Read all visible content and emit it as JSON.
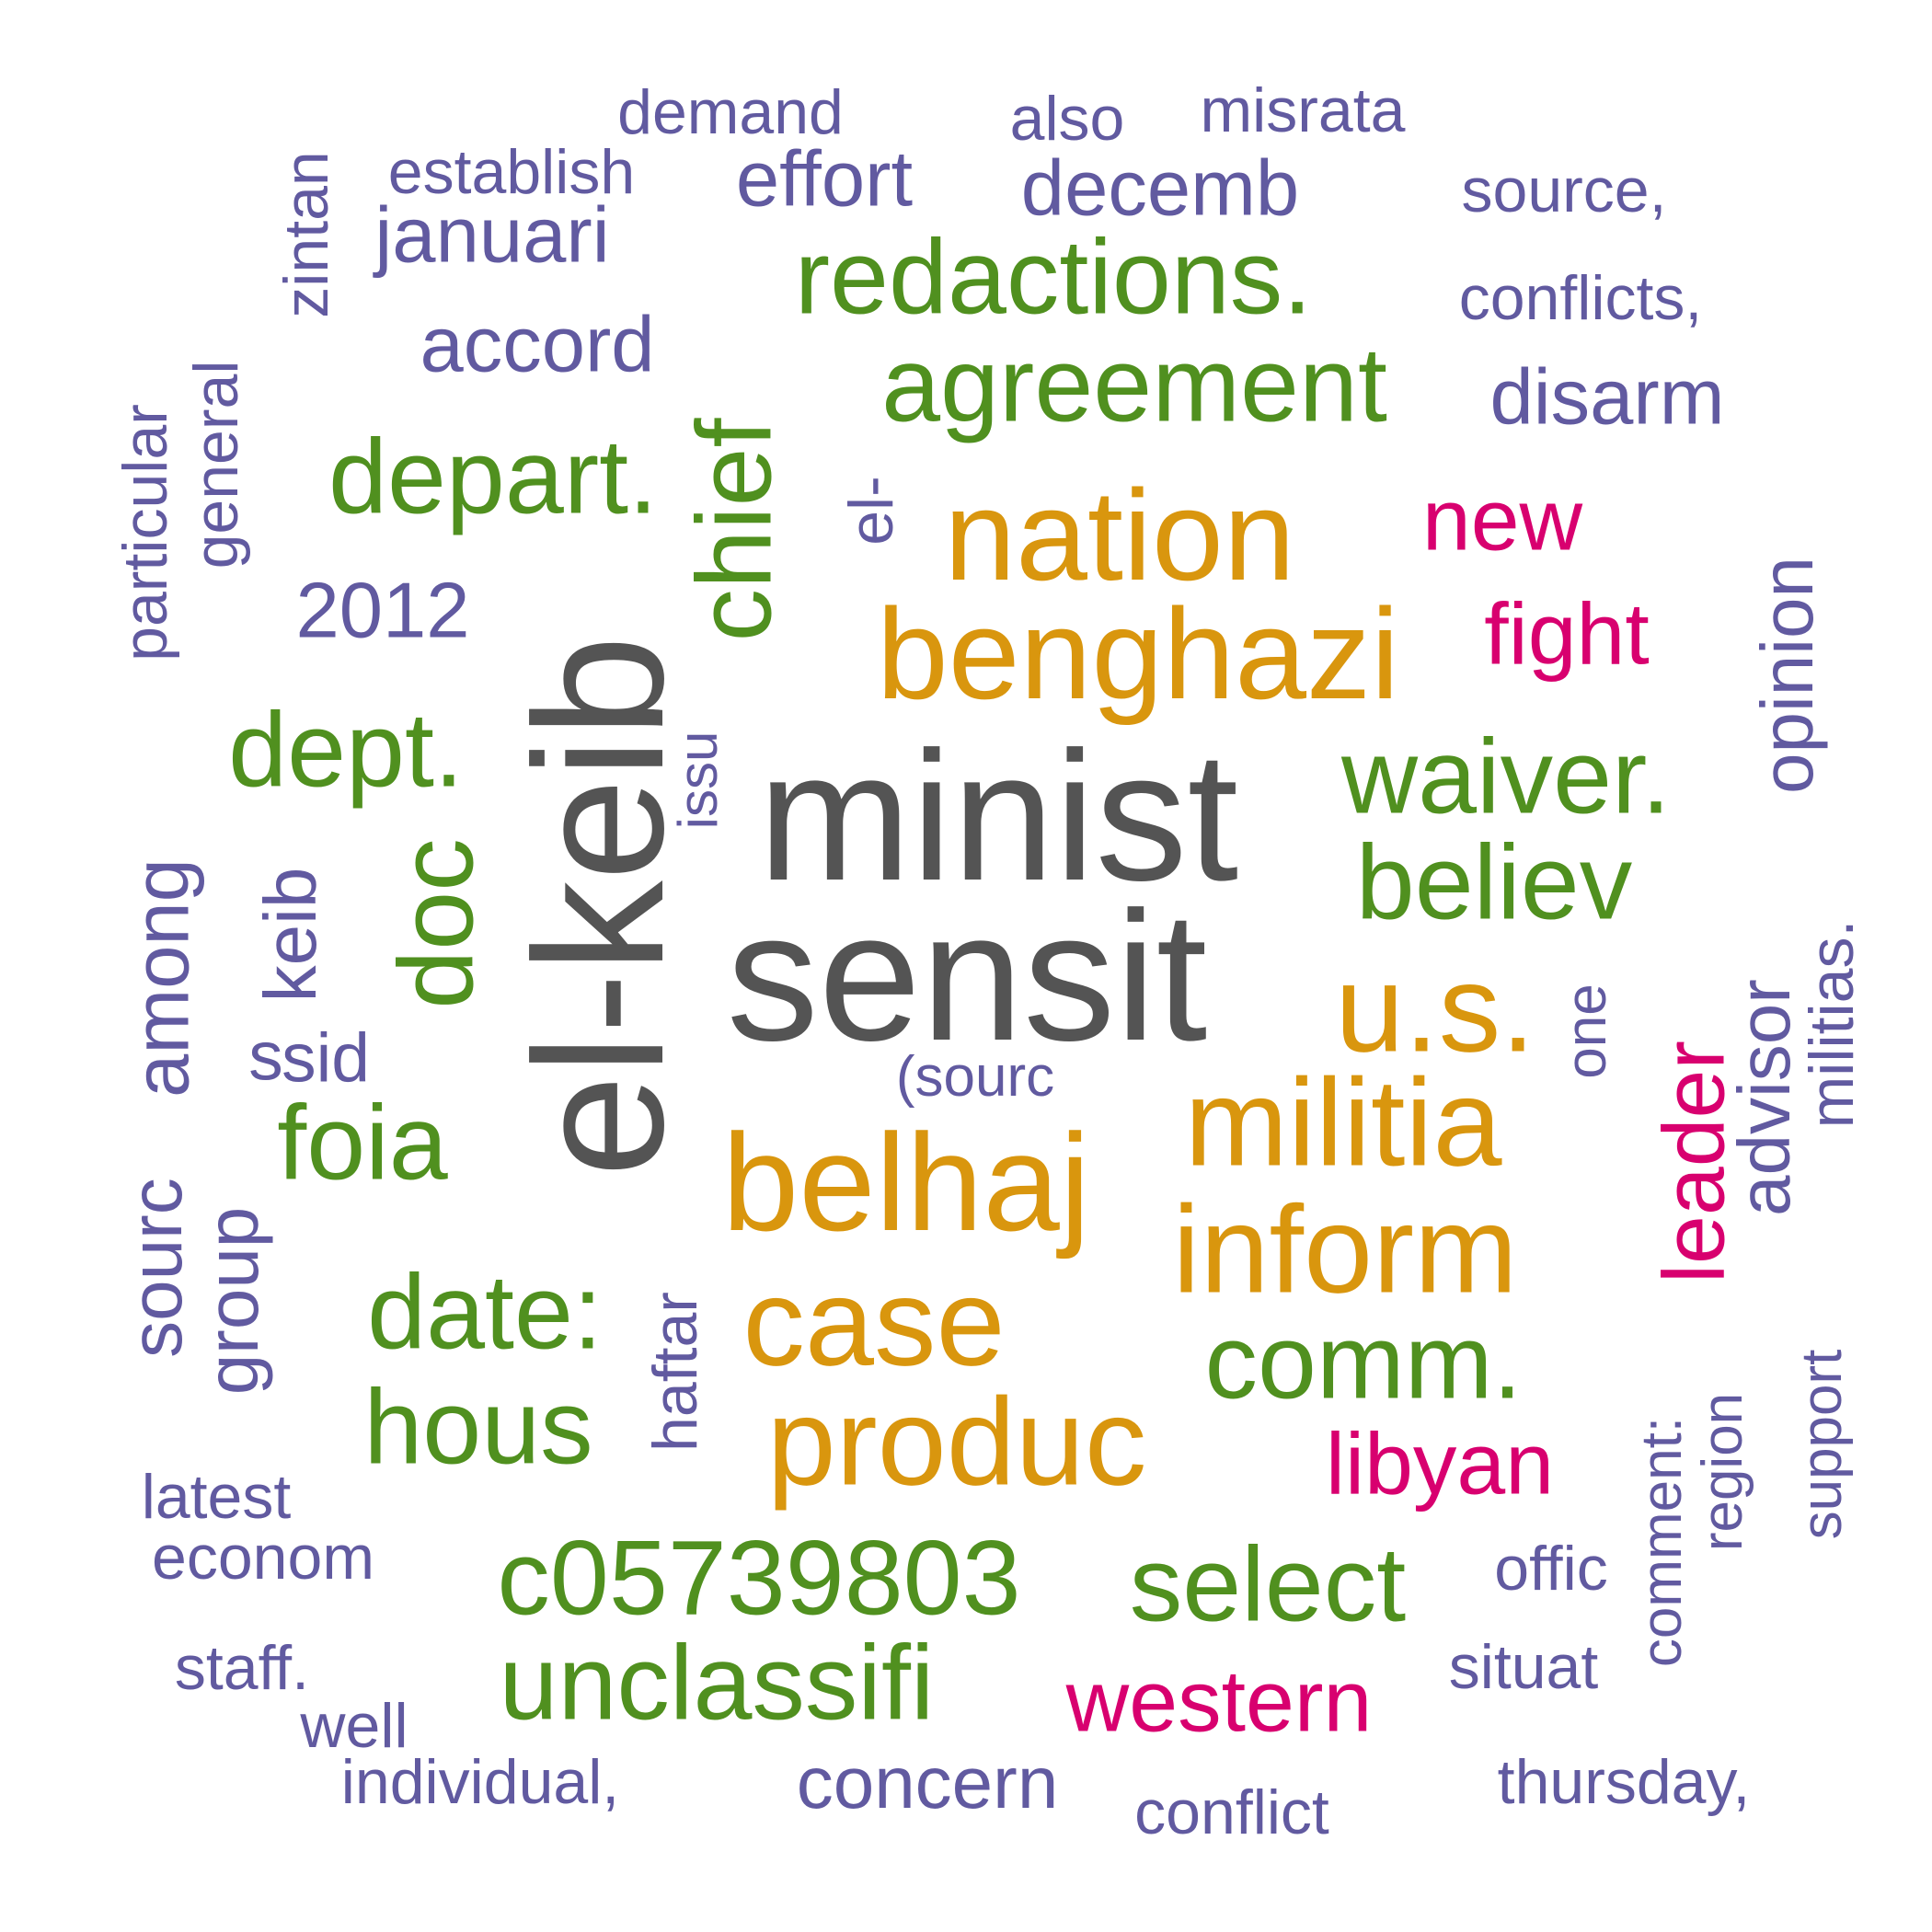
{
  "colors": {
    "dark": "#545454",
    "orange": "#d9960e",
    "green": "#50901f",
    "pink": "#d8006f",
    "purple": "#615aa0"
  },
  "words": [
    {
      "text": "minist",
      "color": "dark"
    },
    {
      "text": "sensit",
      "color": "dark"
    },
    {
      "text": "el-keib",
      "color": "dark"
    },
    {
      "text": "belhaj",
      "color": "orange"
    },
    {
      "text": "benghazi",
      "color": "orange"
    },
    {
      "text": "nation",
      "color": "orange"
    },
    {
      "text": "militia",
      "color": "orange"
    },
    {
      "text": "inform",
      "color": "orange"
    },
    {
      "text": "case",
      "color": "orange"
    },
    {
      "text": "produc",
      "color": "orange"
    },
    {
      "text": "u.s.",
      "color": "orange"
    },
    {
      "text": "redactions.",
      "color": "green"
    },
    {
      "text": "agreement",
      "color": "green"
    },
    {
      "text": "depart.",
      "color": "green"
    },
    {
      "text": "chief",
      "color": "green"
    },
    {
      "text": "dept.",
      "color": "green"
    },
    {
      "text": "waiver.",
      "color": "green"
    },
    {
      "text": "believ",
      "color": "green"
    },
    {
      "text": "doc",
      "color": "green"
    },
    {
      "text": "foia",
      "color": "green"
    },
    {
      "text": "date:",
      "color": "green"
    },
    {
      "text": "comm.",
      "color": "green"
    },
    {
      "text": "hous",
      "color": "green"
    },
    {
      "text": "c05739803",
      "color": "green"
    },
    {
      "text": "select",
      "color": "green"
    },
    {
      "text": "unclassifi",
      "color": "green"
    },
    {
      "text": "new",
      "color": "pink"
    },
    {
      "text": "fight",
      "color": "pink"
    },
    {
      "text": "leader",
      "color": "pink"
    },
    {
      "text": "libyan",
      "color": "pink"
    },
    {
      "text": "western",
      "color": "pink"
    },
    {
      "text": "demand",
      "color": "purple"
    },
    {
      "text": "also",
      "color": "purple"
    },
    {
      "text": "misrata",
      "color": "purple"
    },
    {
      "text": "establish",
      "color": "purple"
    },
    {
      "text": "effort",
      "color": "purple"
    },
    {
      "text": "decemb",
      "color": "purple"
    },
    {
      "text": "source,",
      "color": "purple"
    },
    {
      "text": "zintan",
      "color": "purple"
    },
    {
      "text": "januari",
      "color": "purple"
    },
    {
      "text": "conflicts,",
      "color": "purple"
    },
    {
      "text": "accord",
      "color": "purple"
    },
    {
      "text": "disarm",
      "color": "purple"
    },
    {
      "text": "general",
      "color": "purple"
    },
    {
      "text": "particular",
      "color": "purple"
    },
    {
      "text": "el-",
      "color": "purple"
    },
    {
      "text": "2012",
      "color": "purple"
    },
    {
      "text": "opinion",
      "color": "purple"
    },
    {
      "text": "issu",
      "color": "purple"
    },
    {
      "text": "among",
      "color": "purple"
    },
    {
      "text": "keib",
      "color": "purple"
    },
    {
      "text": "s",
      "color": "purple"
    },
    {
      "text": "sid",
      "color": "purple"
    },
    {
      "text": "(sourc",
      "color": "purple"
    },
    {
      "text": "advisor",
      "color": "purple"
    },
    {
      "text": "militias.",
      "color": "purple"
    },
    {
      "text": "one",
      "color": "purple"
    },
    {
      "text": "sourc",
      "color": "purple"
    },
    {
      "text": "group",
      "color": "purple"
    },
    {
      "text": "haftar",
      "color": "purple"
    },
    {
      "text": "latest",
      "color": "purple"
    },
    {
      "text": "econom",
      "color": "purple"
    },
    {
      "text": "comment:",
      "color": "purple"
    },
    {
      "text": "region",
      "color": "purple"
    },
    {
      "text": "support",
      "color": "purple"
    },
    {
      "text": "offic",
      "color": "purple"
    },
    {
      "text": "staff.",
      "color": "purple"
    },
    {
      "text": "situat",
      "color": "purple"
    },
    {
      "text": "well",
      "color": "purple"
    },
    {
      "text": "individual,",
      "color": "purple"
    },
    {
      "text": "concern",
      "color": "purple"
    },
    {
      "text": "thursday,",
      "color": "purple"
    },
    {
      "text": "conflict",
      "color": "purple"
    }
  ]
}
